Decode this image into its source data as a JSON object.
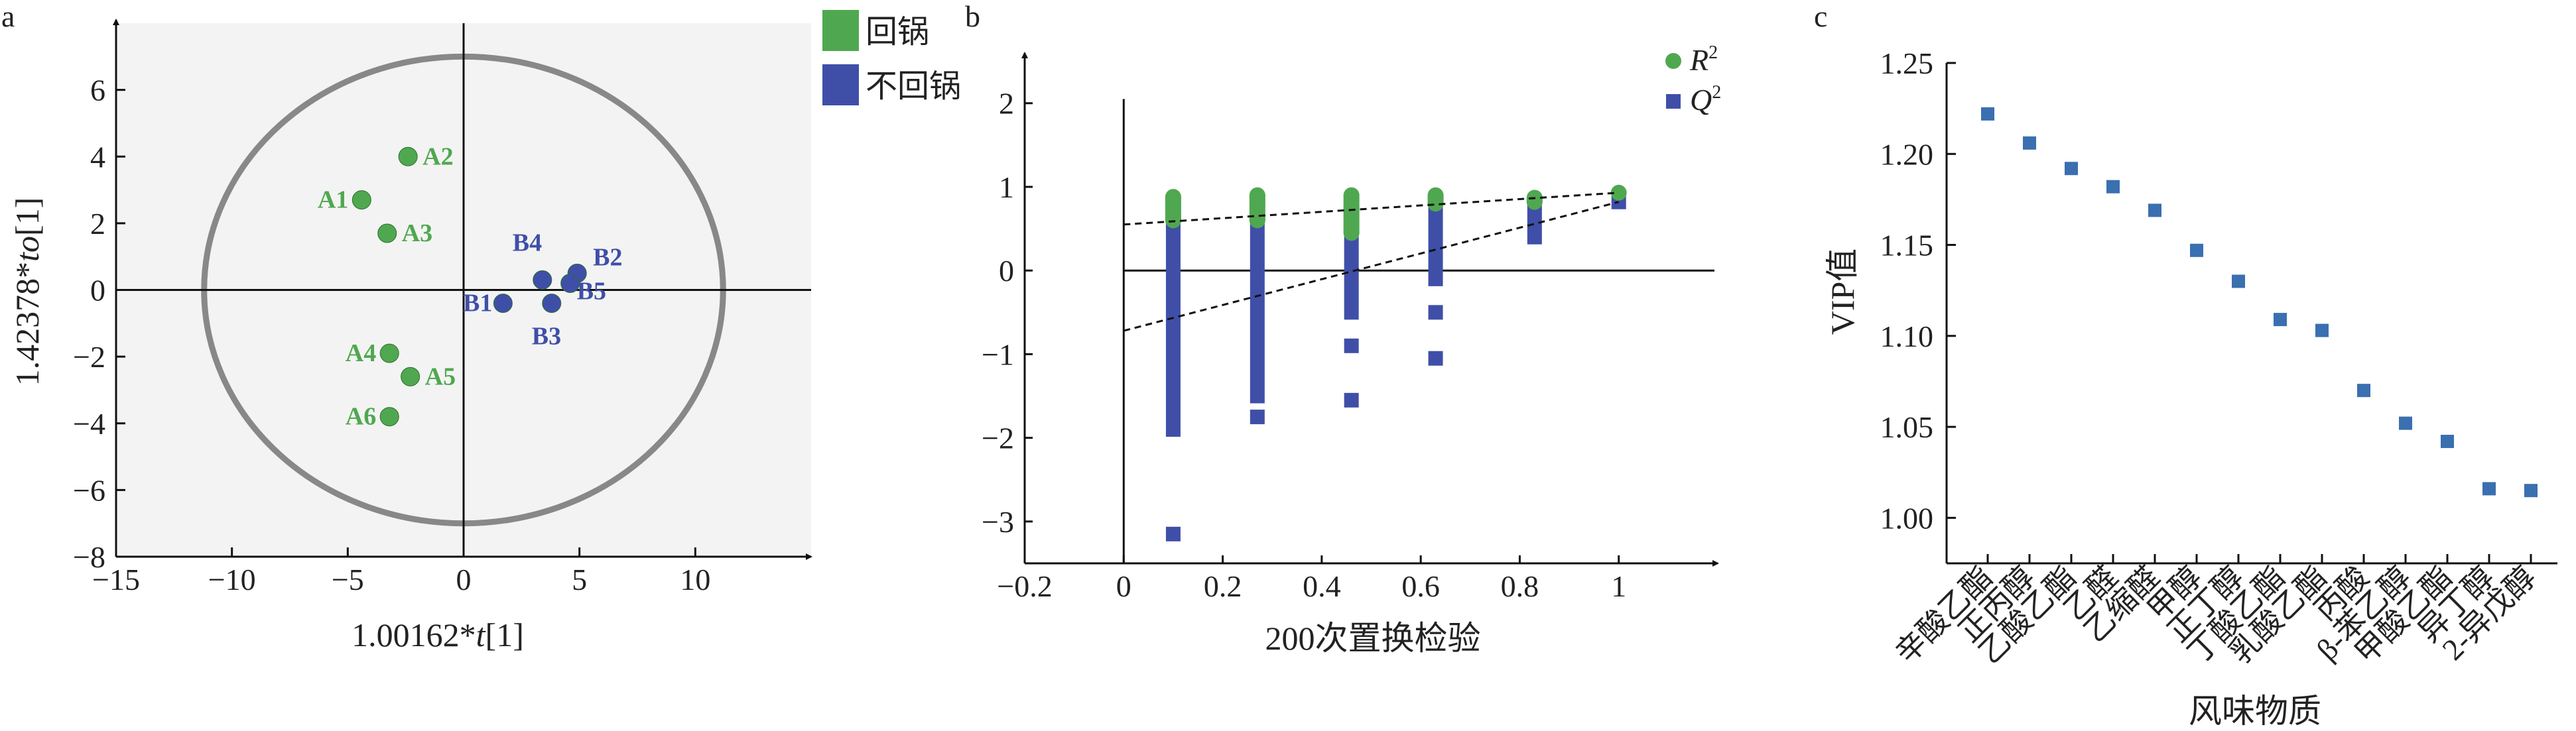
{
  "panel_labels": [
    "a",
    "b",
    "c"
  ],
  "legend_a": [
    {
      "label": "回锅",
      "color": "#4fa84f"
    },
    {
      "label": "不回锅",
      "color": "#3f4fa8"
    }
  ],
  "chart_data": [
    {
      "type": "scatter",
      "panel": "a",
      "xlabel_pre": "1.00162*",
      "xlabel_var": "t",
      "xlabel_post": "[1]",
      "ylabel_pre": "1.42378*",
      "ylabel_var": "to",
      "ylabel_post": "[1]",
      "xlim": [
        -15,
        15
      ],
      "ylim": [
        -8,
        8
      ],
      "xticks": [
        -15,
        -10,
        -5,
        0,
        5,
        10
      ],
      "yticks": [
        -8,
        -6,
        -4,
        -2,
        0,
        2,
        4,
        6
      ],
      "ellipse": {
        "cx": 0,
        "cy": 0,
        "rx": 11.2,
        "ry": 7
      },
      "series": [
        {
          "name": "回锅",
          "color": "#4fa84f",
          "points": [
            {
              "label": "A1",
              "x": -4.4,
              "y": 2.7
            },
            {
              "label": "A2",
              "x": -2.4,
              "y": 4.0
            },
            {
              "label": "A3",
              "x": -3.3,
              "y": 1.7
            },
            {
              "label": "A4",
              "x": -3.2,
              "y": -1.9
            },
            {
              "label": "A5",
              "x": -2.3,
              "y": -2.6
            },
            {
              "label": "A6",
              "x": -3.2,
              "y": -3.8
            }
          ]
        },
        {
          "name": "不回锅",
          "color": "#3f4fa8",
          "points": [
            {
              "label": "B1",
              "x": 1.7,
              "y": -0.4
            },
            {
              "label": "B2",
              "x": 4.9,
              "y": 0.5
            },
            {
              "label": "B3",
              "x": 3.8,
              "y": -0.4
            },
            {
              "label": "B4",
              "x": 3.4,
              "y": 0.3
            },
            {
              "label": "B5",
              "x": 4.6,
              "y": 0.2
            }
          ]
        }
      ]
    },
    {
      "type": "scatter",
      "panel": "b",
      "xlabel": "200次置换检验",
      "xlim": [
        -0.2,
        1.2
      ],
      "ylim": [
        -3.5,
        2.6
      ],
      "xticks": [
        -0.2,
        0,
        0.2,
        0.4,
        0.6,
        0.8,
        1
      ],
      "yticks": [
        -3,
        -2,
        -1,
        0,
        1,
        2
      ],
      "legend": [
        {
          "symbol": "R",
          "sup": "2",
          "color": "#4fa84f"
        },
        {
          "symbol": "Q",
          "sup": "2",
          "color": "#3f4fa8"
        }
      ],
      "series": [
        {
          "name": "R2",
          "color": "#4fa84f",
          "columns": [
            {
              "x": 0.1,
              "y_min": 0.6,
              "y_max": 0.88
            },
            {
              "x": 0.27,
              "y_min": 0.6,
              "y_max": 0.9
            },
            {
              "x": 0.46,
              "y_min": 0.45,
              "y_max": 0.9
            },
            {
              "x": 0.63,
              "y_min": 0.8,
              "y_max": 0.9
            },
            {
              "x": 0.83,
              "y_min": 0.82,
              "y_max": 0.87
            },
            {
              "x": 1.0,
              "y_min": 0.93,
              "y_max": 0.93
            }
          ]
        },
        {
          "name": "Q2",
          "color": "#3f4fa8",
          "columns": [
            {
              "x": 0.1,
              "y_min": -1.9,
              "y_max": 0.6,
              "outliers": [
                -3.15
              ]
            },
            {
              "x": 0.27,
              "y_min": -1.5,
              "y_max": 0.6,
              "outliers": [
                -1.75
              ]
            },
            {
              "x": 0.46,
              "y_min": -0.5,
              "y_max": 0.7,
              "outliers": [
                -0.9,
                -1.55
              ]
            },
            {
              "x": 0.63,
              "y_min": -0.1,
              "y_max": 0.75,
              "outliers": [
                -0.5,
                -1.05
              ]
            },
            {
              "x": 0.83,
              "y_min": 0.4,
              "y_max": 0.7,
              "outliers": []
            },
            {
              "x": 1.0,
              "y_min": 0.82,
              "y_max": 0.82,
              "outliers": []
            }
          ]
        }
      ],
      "regression_lines": [
        {
          "name": "R2",
          "intercept": 0.55,
          "slope": 0.38
        },
        {
          "name": "Q2",
          "intercept": -0.72,
          "slope": 1.54
        }
      ]
    },
    {
      "type": "scatter",
      "panel": "c",
      "xlabel": "风味物质",
      "ylabel": "VIP值",
      "ylim": [
        0.975,
        1.25
      ],
      "yticks": [
        "1.00",
        "1.05",
        "1.10",
        "1.15",
        "1.20",
        "1.25"
      ],
      "color": "#3a6fb0",
      "categories": [
        "辛酸乙酯",
        "正丙醇",
        "乙酸乙酯",
        "乙醛",
        "乙缩醛",
        "甲醇",
        "正丁醇",
        "丁酸乙酯",
        "乳酸乙酯",
        "丙酸",
        "β-苯乙醇",
        "甲酸乙酯",
        "异丁醇",
        "2-异戊醇"
      ],
      "values": [
        1.222,
        1.206,
        1.192,
        1.182,
        1.169,
        1.147,
        1.13,
        1.109,
        1.103,
        1.07,
        1.052,
        1.042,
        1.016,
        1.015
      ]
    }
  ]
}
